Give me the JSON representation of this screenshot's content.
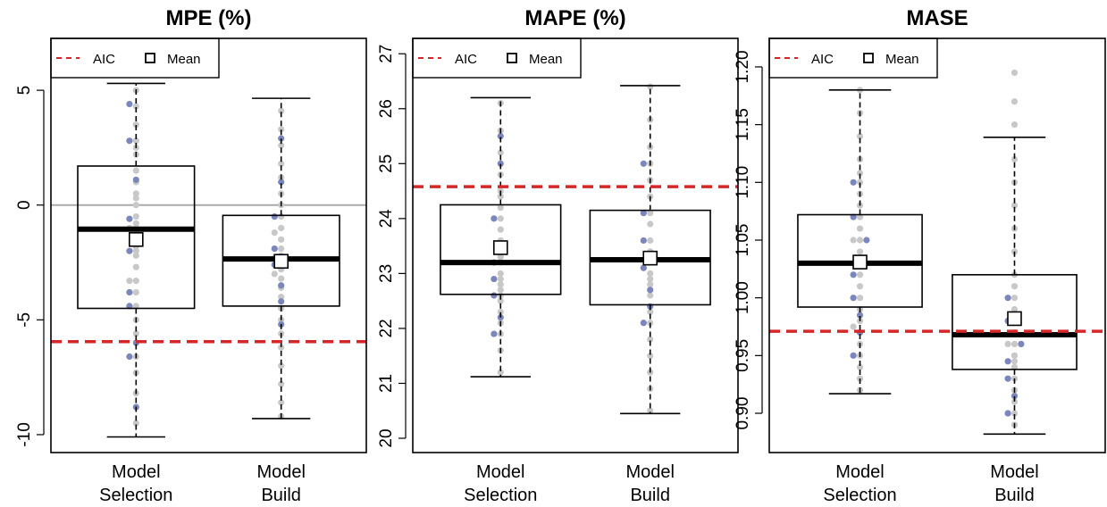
{
  "chart_data": [
    {
      "type": "box",
      "title": "MPE (%)",
      "ylim": [
        -10.78,
        7.26
      ],
      "yticks": [
        -10,
        -5,
        0,
        5
      ],
      "reference_line": 0,
      "aic_line": -5.95,
      "aic_color": "#d62728",
      "point_color": "#c8c8c8",
      "highlight_color": "#7b86bd",
      "legend": [
        {
          "name": "AIC"
        },
        {
          "name": "Mean"
        }
      ],
      "groups": [
        {
          "name": "Model\nSelection",
          "whisker_low": -10.1,
          "q1": -4.5,
          "median": -1.05,
          "q3": 1.7,
          "whisker_high": 5.3,
          "mean": -1.5,
          "points": [
            5.0,
            4.3,
            3.5,
            2.8,
            2.5,
            2.2,
            1.5,
            1.0,
            0.5,
            0.0,
            -0.5,
            -0.8,
            -1.0,
            -1.3,
            -1.8,
            -2.2,
            -2.7,
            -3.3,
            -3.3,
            -3.8,
            -4.4,
            -5.0,
            -5.6,
            -6.6,
            -7.3,
            -8.2,
            -9.5,
            -1.0,
            0.3,
            -2.0
          ],
          "highlighted": [
            4.4,
            2.8,
            1.1,
            -0.6,
            -2.0,
            -3.8,
            -4.4,
            -6.0,
            -6.6,
            -8.8
          ]
        },
        {
          "name": "Model\nBuild",
          "whisker_low": -9.3,
          "q1": -4.4,
          "median": -2.35,
          "q3": -0.45,
          "whisker_high": 4.65,
          "mean": -2.45,
          "points": [
            4.1,
            3.3,
            2.6,
            1.8,
            1.2,
            0.5,
            0.0,
            -0.5,
            -1.0,
            -1.5,
            -1.9,
            -2.2,
            -2.5,
            -2.8,
            -3.2,
            -3.6,
            -4.0,
            -4.5,
            -5.0,
            -5.6,
            -6.2,
            -7.0,
            -7.8,
            -8.6,
            -9.2,
            -2.3,
            -1.2,
            -3.0
          ],
          "highlighted": [
            2.9,
            1.0,
            -0.5,
            -1.9,
            -2.6,
            -3.5,
            -4.2,
            -5.2
          ]
        }
      ]
    },
    {
      "type": "box",
      "title": "MAPE (%)",
      "ylim": [
        19.74,
        27.28
      ],
      "yticks": [
        20,
        21,
        22,
        23,
        24,
        25,
        26,
        27
      ],
      "aic_line": 24.58,
      "aic_color": "#d62728",
      "point_color": "#c8c8c8",
      "highlight_color": "#7b86bd",
      "legend": [
        {
          "name": "AIC"
        },
        {
          "name": "Mean"
        }
      ],
      "groups": [
        {
          "name": "Model\nSelection",
          "whisker_low": 21.12,
          "q1": 22.62,
          "median": 23.2,
          "q3": 24.25,
          "whisker_high": 26.2,
          "mean": 23.47,
          "points": [
            26.1,
            25.6,
            25.2,
            24.8,
            24.5,
            24.2,
            24.0,
            23.8,
            23.6,
            23.4,
            23.2,
            23.0,
            22.9,
            22.8,
            22.6,
            22.5,
            22.3,
            22.1,
            21.9,
            21.6,
            21.2,
            23.3,
            22.7,
            24.4
          ],
          "highlighted": [
            25.5,
            25.0,
            24.0,
            23.2,
            22.9,
            22.6,
            22.2,
            21.9
          ]
        },
        {
          "name": "Model\nBuild",
          "whisker_low": 20.45,
          "q1": 22.43,
          "median": 23.25,
          "q3": 24.15,
          "whisker_high": 26.42,
          "mean": 23.28,
          "points": [
            26.4,
            25.8,
            25.3,
            25.0,
            24.7,
            24.4,
            24.1,
            23.9,
            23.6,
            23.4,
            23.2,
            23.0,
            22.8,
            22.6,
            22.3,
            22.1,
            21.8,
            21.5,
            21.2,
            20.9,
            20.5,
            23.3,
            22.9
          ],
          "highlighted": [
            25.0,
            24.1,
            23.6,
            23.1,
            22.7,
            22.4,
            22.1
          ]
        }
      ]
    },
    {
      "type": "box",
      "title": "MASE",
      "ylim": [
        0.866,
        1.2247
      ],
      "yticks": [
        {
          "value": 0.9,
          "label": "0.90"
        },
        {
          "value": 0.95,
          "label": "0.95"
        },
        {
          "value": 1.0,
          "label": "1.00"
        },
        {
          "value": 1.05,
          "label": "1.05"
        },
        {
          "value": 1.1,
          "label": "1.10"
        },
        {
          "value": 1.15,
          "label": "1.15"
        },
        {
          "value": 1.2,
          "label": "1.20"
        }
      ],
      "aic_line": 0.971,
      "aic_color": "#d62728",
      "point_color": "#c8c8c8",
      "highlight_color": "#7b86bd",
      "legend": [
        {
          "name": "AIC"
        },
        {
          "name": "Mean"
        }
      ],
      "groups": [
        {
          "name": "Model\nSelection",
          "whisker_low": 0.917,
          "q1": 0.992,
          "median": 1.03,
          "q3": 1.072,
          "whisker_high": 1.18,
          "mean": 1.031,
          "points": [
            1.18,
            1.16,
            1.14,
            1.12,
            1.108,
            1.1,
            1.09,
            1.08,
            1.07,
            1.06,
            1.05,
            1.04,
            1.03,
            1.02,
            1.01,
            1.0,
            0.99,
            0.98,
            0.975,
            0.96,
            0.95,
            0.94,
            0.93,
            0.92,
            1.03,
            1.05
          ],
          "highlighted": [
            1.1,
            1.07,
            1.05,
            1.02,
            1.0,
            0.985,
            0.97,
            0.95
          ]
        },
        {
          "name": "Model\nBuild",
          "whisker_low": 0.882,
          "q1": 0.938,
          "median": 0.968,
          "q3": 1.02,
          "whisker_high": 1.139,
          "mean": 0.982,
          "points": [
            1.195,
            1.17,
            1.15,
            1.12,
            1.1,
            1.08,
            1.06,
            1.04,
            1.02,
            1.01,
            1.0,
            0.99,
            0.98,
            0.97,
            0.96,
            0.95,
            0.945,
            0.94,
            0.93,
            0.92,
            0.91,
            0.9,
            0.89,
            0.96
          ],
          "highlighted": [
            1.0,
            0.98,
            0.96,
            0.945,
            0.93,
            0.915,
            0.9
          ]
        }
      ]
    }
  ]
}
